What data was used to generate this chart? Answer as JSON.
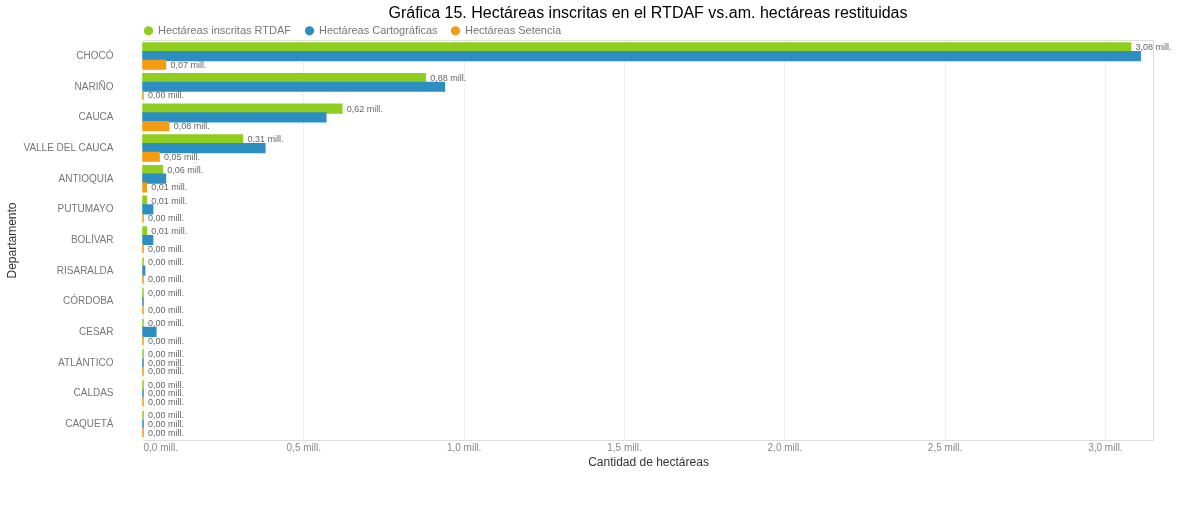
{
  "chart_data": {
    "type": "bar",
    "orientation": "horizontal",
    "title": "Gráfica 15. Hectáreas inscritas en el RTDAF vs.am. hectáreas restituidas",
    "xlabel": "Cantidad de hectáreas",
    "ylabel": "Departamento",
    "categories": [
      "CHOCÓ",
      "NARIÑO",
      "CAUCA",
      "VALLE DEL CAUCA",
      "ANTIOQUIA",
      "PUTUMAYO",
      "BOLÍVAR",
      "RISARALDA",
      "CÓRDOBA",
      "CESAR",
      "ATLÁNTICO",
      "CALDAS",
      "CAQUETÁ"
    ],
    "series": [
      {
        "name": "Hectáreas inscritas RTDAF",
        "color": "#8fce1f",
        "values": [
          3.08,
          0.88,
          0.62,
          0.31,
          0.06,
          0.01,
          0.01,
          0.0,
          0.0,
          0.0,
          0.0,
          0.0,
          0.0
        ],
        "value_labels": [
          "3,08 mill.",
          "0,88 mill.",
          "0,62 mill.",
          "0,31 mill.",
          "0,06 mill.",
          "0,01 mill.",
          "0,01 mill.",
          "0,00 mill.",
          "0,00 mill.",
          "0,00 mill.",
          "0,00 mill.",
          "0,00 mill.",
          "0,00 mill."
        ]
      },
      {
        "name": "Hectáreas Cartográficas",
        "color": "#2d8fc1",
        "values": [
          3.11,
          0.94,
          0.57,
          0.38,
          0.07,
          0.03,
          0.03,
          0.005,
          0.0,
          0.04,
          0.0,
          0.0,
          0.0
        ],
        "value_labels": [
          null,
          null,
          null,
          null,
          null,
          null,
          null,
          null,
          null,
          null,
          "0,00 mill.",
          "0,00 mill.",
          "0,00 mill."
        ]
      },
      {
        "name": "Hectáreas Setencia",
        "color": "#f39c12",
        "values": [
          0.07,
          0.0,
          0.08,
          0.05,
          0.01,
          0.0,
          0.0,
          0.0,
          0.0,
          0.0,
          0.0,
          0.0,
          0.0
        ],
        "value_labels": [
          "0,07 mill.",
          "0,00 mill.",
          "0,08 mill.",
          "0,05 mill.",
          "0,01 mill.",
          "0,00 mill.",
          "0,00 mill.",
          "0,00 mill.",
          "0,00 mill.",
          "0,00 mill.",
          "0,00 mill.",
          "0,00 mill.",
          "0,00 mill."
        ]
      }
    ],
    "xlim": [
      0,
      3.15
    ],
    "xticks": [
      {
        "value": 0,
        "label": "0,0 mill."
      },
      {
        "value": 0.5,
        "label": "0,5 mill."
      },
      {
        "value": 1.0,
        "label": "1,0 mill."
      },
      {
        "value": 1.5,
        "label": "1,5 mill."
      },
      {
        "value": 2.0,
        "label": "2,0 mill."
      },
      {
        "value": 2.5,
        "label": "2,5 mill."
      },
      {
        "value": 3.0,
        "label": "3,0 mill."
      }
    ],
    "grid": "x",
    "legend": "top left"
  }
}
